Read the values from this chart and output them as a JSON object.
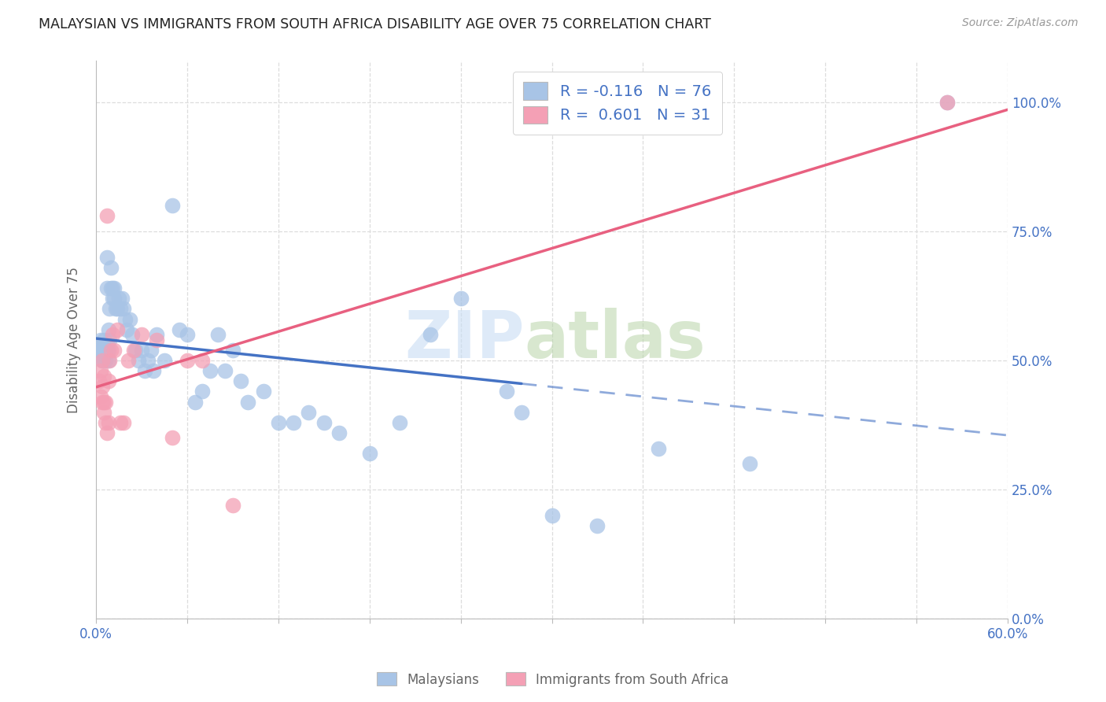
{
  "title": "MALAYSIAN VS IMMIGRANTS FROM SOUTH AFRICA DISABILITY AGE OVER 75 CORRELATION CHART",
  "source": "Source: ZipAtlas.com",
  "ylabel_label": "Disability Age Over 75",
  "blue_r": "-0.116",
  "blue_n": "76",
  "pink_r": "0.601",
  "pink_n": "31",
  "blue_scatter_color": "#a8c4e6",
  "pink_scatter_color": "#f4a0b5",
  "blue_line_color": "#4472c4",
  "pink_line_color": "#e86080",
  "axis_text_color": "#4472c4",
  "label_color": "#666666",
  "title_color": "#222222",
  "source_color": "#999999",
  "background": "#ffffff",
  "grid_color": "#dddddd",
  "xlim": [
    0.0,
    0.6
  ],
  "ylim": [
    0.0,
    1.08
  ],
  "ytick_positions": [
    0.0,
    0.25,
    0.5,
    0.75,
    1.0
  ],
  "xtick_positions": [
    0.0,
    0.06,
    0.12,
    0.18,
    0.24,
    0.3,
    0.36,
    0.42,
    0.48,
    0.54,
    0.6
  ],
  "xtick_labels": [
    "0.0%",
    "",
    "",
    "",
    "",
    "",
    "",
    "",
    "",
    "",
    "60.0%"
  ],
  "blue_x": [
    0.002,
    0.003,
    0.003,
    0.004,
    0.004,
    0.004,
    0.005,
    0.005,
    0.005,
    0.005,
    0.006,
    0.006,
    0.006,
    0.006,
    0.007,
    0.007,
    0.007,
    0.007,
    0.008,
    0.008,
    0.008,
    0.009,
    0.009,
    0.01,
    0.01,
    0.011,
    0.011,
    0.012,
    0.012,
    0.013,
    0.014,
    0.015,
    0.016,
    0.017,
    0.018,
    0.019,
    0.02,
    0.022,
    0.024,
    0.026,
    0.028,
    0.03,
    0.032,
    0.034,
    0.036,
    0.038,
    0.04,
    0.045,
    0.05,
    0.055,
    0.06,
    0.065,
    0.07,
    0.075,
    0.08,
    0.085,
    0.09,
    0.095,
    0.1,
    0.11,
    0.12,
    0.13,
    0.14,
    0.15,
    0.16,
    0.18,
    0.2,
    0.22,
    0.24,
    0.27,
    0.28,
    0.3,
    0.33,
    0.37,
    0.43,
    0.56
  ],
  "blue_y": [
    0.52,
    0.54,
    0.52,
    0.52,
    0.53,
    0.5,
    0.52,
    0.53,
    0.54,
    0.5,
    0.52,
    0.53,
    0.5,
    0.52,
    0.52,
    0.53,
    0.64,
    0.7,
    0.5,
    0.56,
    0.52,
    0.54,
    0.6,
    0.64,
    0.68,
    0.62,
    0.64,
    0.62,
    0.64,
    0.6,
    0.6,
    0.62,
    0.6,
    0.62,
    0.6,
    0.58,
    0.56,
    0.58,
    0.55,
    0.52,
    0.5,
    0.52,
    0.48,
    0.5,
    0.52,
    0.48,
    0.55,
    0.5,
    0.8,
    0.56,
    0.55,
    0.42,
    0.44,
    0.48,
    0.55,
    0.48,
    0.52,
    0.46,
    0.42,
    0.44,
    0.38,
    0.38,
    0.4,
    0.38,
    0.36,
    0.32,
    0.38,
    0.55,
    0.62,
    0.44,
    0.4,
    0.2,
    0.18,
    0.33,
    0.3,
    1.0
  ],
  "pink_x": [
    0.002,
    0.003,
    0.003,
    0.004,
    0.004,
    0.004,
    0.005,
    0.005,
    0.005,
    0.006,
    0.006,
    0.007,
    0.007,
    0.008,
    0.008,
    0.009,
    0.01,
    0.011,
    0.012,
    0.014,
    0.016,
    0.018,
    0.021,
    0.025,
    0.03,
    0.04,
    0.05,
    0.06,
    0.07,
    0.09,
    0.56
  ],
  "pink_y": [
    0.46,
    0.48,
    0.43,
    0.45,
    0.5,
    0.42,
    0.47,
    0.42,
    0.4,
    0.42,
    0.38,
    0.36,
    0.78,
    0.38,
    0.46,
    0.5,
    0.52,
    0.55,
    0.52,
    0.56,
    0.38,
    0.38,
    0.5,
    0.52,
    0.55,
    0.54,
    0.35,
    0.5,
    0.5,
    0.22,
    1.0
  ],
  "blue_solid_xend": 0.28,
  "watermark_zip_color": "#c0d8f0",
  "watermark_atlas_color": "#b8d4a0"
}
